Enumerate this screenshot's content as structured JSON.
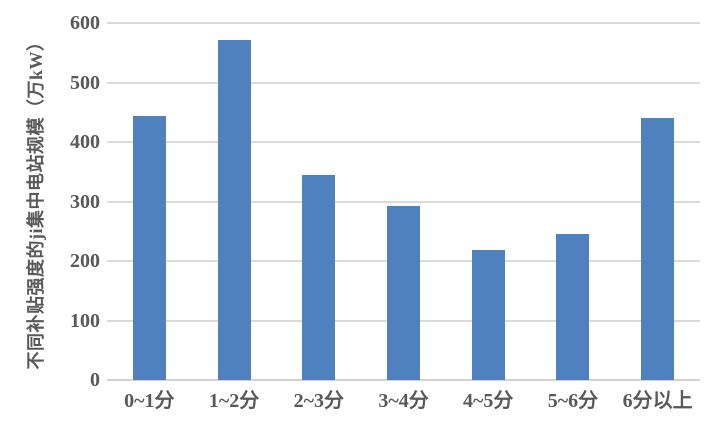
{
  "chart_data": {
    "type": "bar",
    "title": "",
    "xlabel": "",
    "ylabel": "不同补贴强度的ji集中电站规模（万kW）",
    "categories": [
      "0~1分",
      "1~2分",
      "2~3分",
      "3~4分",
      "4~5分",
      "5~6分",
      "6分以上"
    ],
    "values": [
      443,
      572,
      345,
      293,
      219,
      245,
      440
    ],
    "ylim": [
      0,
      600
    ],
    "yticks": [
      0,
      100,
      200,
      300,
      400,
      500,
      600
    ],
    "grid": "horizontal-gridlines",
    "legend": "none",
    "bar_color": "#4E81BD",
    "gridline_color": "#DBDBDB",
    "axis_line_color": "#D2D2D2",
    "axis_text_color": "#595959",
    "background_color": "#FFFFFF"
  }
}
